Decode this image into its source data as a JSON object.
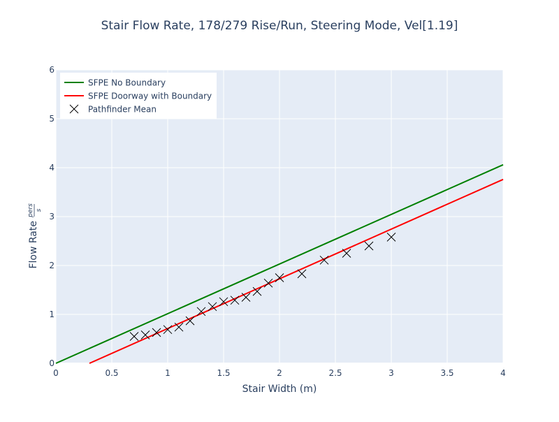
{
  "chart_data": {
    "type": "line",
    "title": "Stair Flow Rate, 178/279 Rise/Run, Steering Mode, Vel[1.19]",
    "xlabel": "Stair Width (m)",
    "ylabel_prefix": "Flow Rate",
    "ylabel_fraction": {
      "numerator": "pers",
      "denominator": "s"
    },
    "xlim": [
      0,
      4
    ],
    "ylim": [
      0,
      6
    ],
    "xticks": [
      0,
      0.5,
      1,
      1.5,
      2,
      2.5,
      3,
      3.5,
      4
    ],
    "xtick_labels": [
      "0",
      "0.5",
      "1",
      "1.5",
      "2",
      "2.5",
      "3",
      "3.5",
      "4"
    ],
    "yticks": [
      0,
      1,
      2,
      3,
      4,
      5,
      6
    ],
    "ytick_labels": [
      "0",
      "1",
      "2",
      "3",
      "4",
      "5",
      "6"
    ],
    "grid": true,
    "legend_position": "top-left",
    "series": [
      {
        "name": "SFPE No Boundary",
        "kind": "line",
        "color": "#008000",
        "x": [
          0,
          4
        ],
        "y": [
          0,
          4.06
        ]
      },
      {
        "name": "SFPE Doorway with Boundary",
        "kind": "line",
        "color": "#ff0000",
        "x": [
          0.3,
          4
        ],
        "y": [
          0,
          3.76
        ]
      },
      {
        "name": "Pathfinder Mean",
        "kind": "scatter",
        "marker": "x",
        "color": "#000000",
        "x": [
          0.7,
          0.8,
          0.9,
          1.0,
          1.1,
          1.2,
          1.3,
          1.4,
          1.5,
          1.6,
          1.7,
          1.8,
          1.9,
          2.0,
          2.2,
          2.4,
          2.6,
          2.8,
          3.0
        ],
        "y": [
          0.55,
          0.58,
          0.63,
          0.69,
          0.74,
          0.87,
          1.06,
          1.16,
          1.26,
          1.29,
          1.35,
          1.47,
          1.64,
          1.75,
          1.83,
          2.11,
          2.25,
          2.4,
          2.58
        ]
      }
    ]
  }
}
